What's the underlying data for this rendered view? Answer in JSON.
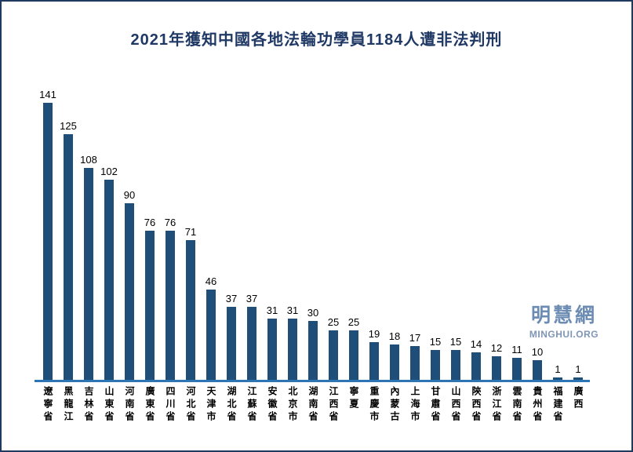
{
  "frame": {
    "border_color": "#1e3a5f",
    "background": "#ffffff"
  },
  "watermark": {
    "cn": "明慧網",
    "en": "MINGHUI.ORG",
    "color_cn": "#6d8cb3",
    "color_en": "#7e95b5"
  },
  "chart_data": {
    "type": "bar",
    "title": "2021年獲知中國各地法輪功學員1184人遭非法判刑",
    "title_color": "#1f3864",
    "total": 1184,
    "categories": [
      "遼寧省",
      "黑龍江",
      "吉林省",
      "山東省",
      "河南省",
      "廣東省",
      "四川省",
      "河北省",
      "天津市",
      "湖北省",
      "江蘇省",
      "安徽省",
      "北京市",
      "湖南省",
      "江西省",
      "寧夏",
      "重慶市",
      "內蒙古",
      "上海市",
      "甘肅省",
      "山西省",
      "陝西省",
      "浙江省",
      "雲南省",
      "貴州省",
      "福建省",
      "廣西"
    ],
    "values": [
      141,
      125,
      108,
      102,
      90,
      76,
      76,
      71,
      46,
      37,
      37,
      31,
      31,
      30,
      25,
      25,
      19,
      18,
      17,
      15,
      15,
      14,
      12,
      11,
      10,
      1,
      1
    ],
    "bar_color": "#1f4e79",
    "axis_color": "#2e75b6",
    "value_label_color": "#000000",
    "xlabel": "",
    "ylabel": "",
    "ylim": [
      0,
      150
    ],
    "grid": false,
    "legend": "none",
    "value_labels_shown": true,
    "x_label_orientation": "vertical"
  }
}
